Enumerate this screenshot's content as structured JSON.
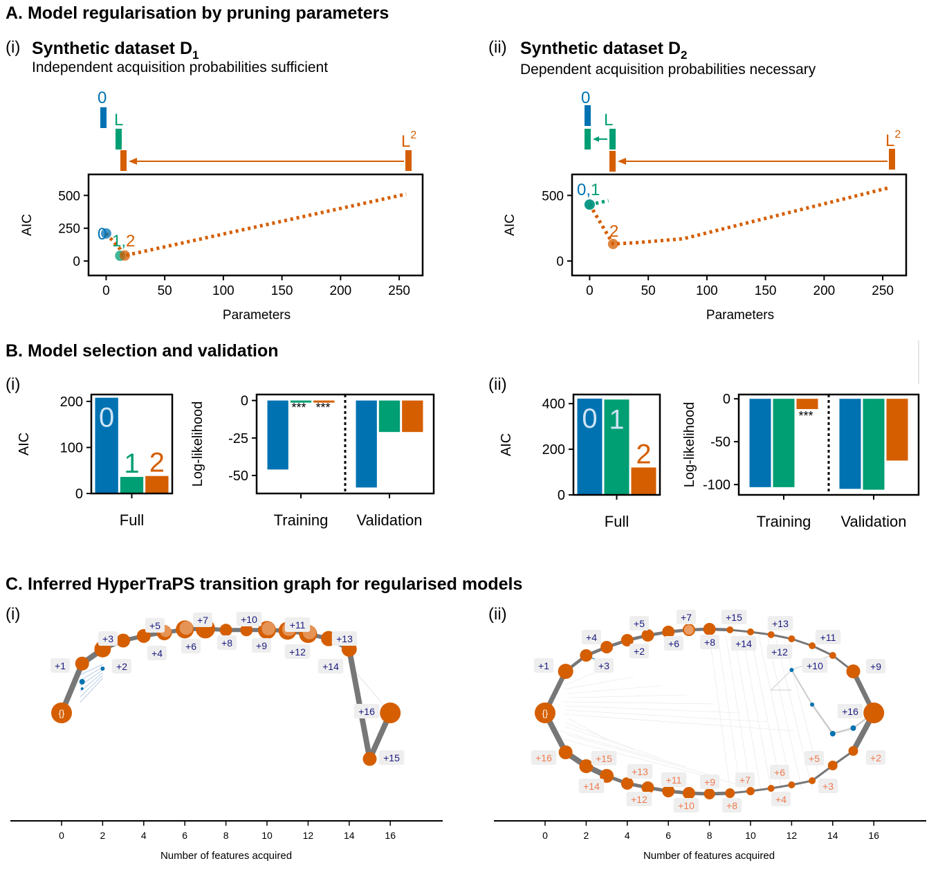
{
  "colors": {
    "c0": "#0072B2",
    "c1": "#009E73",
    "c2": "#D55E00",
    "navy": "#1a1a80",
    "salmon": "#f07a50",
    "edge": "#777777",
    "box": "#eeeeee"
  },
  "headings": {
    "A": "A. Model regularisation by pruning parameters",
    "B": "B. Model selection and validation",
    "C": "C. Inferred HyperTraPS transition graph for regularised models"
  },
  "panelA": {
    "i": {
      "tag": "(i)",
      "title": "Synthetic dataset D",
      "sub": "1",
      "subtitle": "Independent acquisition probabilities sufficient",
      "labels": {
        "m0": "0",
        "m1": "L",
        "m2": "L",
        "m2sup": "2",
        "pt0": "0",
        "pt12": "1,2"
      }
    },
    "ii": {
      "tag": "(ii)",
      "title": "Synthetic dataset D",
      "sub": "2",
      "subtitle": "Dependent acquisition probabilities necessary",
      "labels": {
        "m0": "0",
        "m1": "L",
        "m2": "L",
        "m2sup": "2",
        "pt01": "0,1",
        "pt2": "2"
      }
    }
  },
  "panelB": {
    "i": {
      "tag": "(i)"
    },
    "ii": {
      "tag": "(ii)"
    }
  },
  "panelC": {
    "i": {
      "tag": "(i)",
      "xlabel": "Number of features acquired"
    },
    "ii": {
      "tag": "(ii)",
      "xlabel": "Number of features acquired"
    }
  },
  "chart_data": [
    {
      "id": "A-i",
      "type": "line",
      "title": "Synthetic dataset D1",
      "xlabel": "Parameters",
      "ylabel": "AIC",
      "xlim": [
        -15,
        270
      ],
      "ylim": [
        -110,
        660
      ],
      "xticks": [
        0,
        50,
        100,
        150,
        200,
        250
      ],
      "yticks": [
        0,
        250,
        500
      ],
      "series": [
        {
          "name": "model 0",
          "color": "#0072B2",
          "x": [
            0
          ],
          "y": [
            210
          ]
        },
        {
          "name": "model 1",
          "color": "#009E73",
          "x": [
            12
          ],
          "y": [
            40
          ]
        },
        {
          "name": "model 2 (pruning L^2)",
          "color": "#D55E00",
          "dotted": true,
          "x": [
            0,
            6,
            12,
            14,
            16,
            256
          ],
          "y": [
            210,
            150,
            90,
            45,
            42,
            510
          ]
        }
      ]
    },
    {
      "id": "A-ii",
      "type": "line",
      "title": "Synthetic dataset D2",
      "xlabel": "Parameters",
      "ylabel": "AIC",
      "xlim": [
        -15,
        270
      ],
      "ylim": [
        -110,
        660
      ],
      "xticks": [
        0,
        50,
        100,
        150,
        200,
        250
      ],
      "yticks": [
        0,
        500
      ],
      "series": [
        {
          "name": "model 0",
          "color": "#0072B2",
          "x": [
            0
          ],
          "y": [
            430
          ]
        },
        {
          "name": "model 1",
          "color": "#009E73",
          "dotted": true,
          "x": [
            0,
            16
          ],
          "y": [
            430,
            460
          ]
        },
        {
          "name": "model 2 (pruning L^2)",
          "color": "#D55E00",
          "dotted": true,
          "x": [
            0,
            10,
            20,
            40,
            80,
            256
          ],
          "y": [
            430,
            280,
            130,
            140,
            170,
            560
          ]
        }
      ]
    },
    {
      "id": "B-i-AIC",
      "type": "bar",
      "ylabel": "AIC",
      "categories": [
        "Full"
      ],
      "ylim": [
        0,
        215
      ],
      "yticks": [
        0,
        100,
        200
      ],
      "series": [
        {
          "name": "0",
          "color": "#0072B2",
          "values": [
            208
          ]
        },
        {
          "name": "1",
          "color": "#009E73",
          "values": [
            36
          ]
        },
        {
          "name": "2",
          "color": "#D55E00",
          "values": [
            38
          ]
        }
      ]
    },
    {
      "id": "B-i-LL",
      "type": "bar",
      "ylabel": "Log-likelihood",
      "categories": [
        "Training",
        "Validation"
      ],
      "ylim": [
        -62,
        4
      ],
      "yticks": [
        0,
        -25,
        -50
      ],
      "annotations": [
        "***",
        "***"
      ],
      "series": [
        {
          "name": "0",
          "color": "#0072B2",
          "values": [
            -46,
            -58
          ]
        },
        {
          "name": "1",
          "color": "#009E73",
          "values": [
            -1,
            -21
          ]
        },
        {
          "name": "2",
          "color": "#D55E00",
          "values": [
            0,
            -21
          ]
        }
      ]
    },
    {
      "id": "B-ii-AIC",
      "type": "bar",
      "ylabel": "AIC",
      "categories": [
        "Full"
      ],
      "ylim": [
        0,
        440
      ],
      "yticks": [
        0,
        200,
        400
      ],
      "series": [
        {
          "name": "0",
          "color": "#0072B2",
          "values": [
            422
          ]
        },
        {
          "name": "1",
          "color": "#009E73",
          "values": [
            418
          ]
        },
        {
          "name": "2",
          "color": "#D55E00",
          "values": [
            120
          ]
        }
      ]
    },
    {
      "id": "B-ii-LL",
      "type": "bar",
      "ylabel": "Log-likelihood",
      "categories": [
        "Training",
        "Validation"
      ],
      "ylim": [
        -112,
        5
      ],
      "yticks": [
        0,
        -50,
        -100
      ],
      "annotations": [
        "***"
      ],
      "series": [
        {
          "name": "0",
          "color": "#0072B2",
          "values": [
            -103,
            -105
          ]
        },
        {
          "name": "1",
          "color": "#009E73",
          "values": [
            -103,
            -106
          ]
        },
        {
          "name": "2",
          "color": "#D55E00",
          "values": [
            -12,
            -72
          ]
        }
      ]
    },
    {
      "id": "C-i",
      "type": "scatter",
      "xlabel": "Number of features acquired",
      "xticks": [
        0,
        2,
        4,
        6,
        8,
        10,
        12,
        14,
        16
      ],
      "nodes": [
        {
          "x": 0,
          "y": 0,
          "label": "{}",
          "r": 15
        },
        {
          "x": 1,
          "y": 0.75,
          "label": "+1",
          "r": 10
        },
        {
          "x": 2,
          "y": 0.97,
          "label": "+2",
          "r": 12
        },
        {
          "x": 2,
          "y": 0.97,
          "label": "+3"
        },
        {
          "x": 3,
          "y": 1.1,
          "label": "",
          "r": 10
        },
        {
          "x": 4,
          "y": 1.17,
          "label": "+4",
          "r": 10
        },
        {
          "x": 5,
          "y": 1.22,
          "label": "+5",
          "r": 11
        },
        {
          "x": 6,
          "y": 1.27,
          "label": "+6",
          "r": 13
        },
        {
          "x": 7,
          "y": 1.28,
          "label": "+7",
          "r": 14
        },
        {
          "x": 8,
          "y": 1.26,
          "label": "+8",
          "r": 9
        },
        {
          "x": 9,
          "y": 1.26,
          "label": "+10",
          "r": 9
        },
        {
          "x": 10,
          "y": 1.26,
          "label": "+9",
          "r": 13
        },
        {
          "x": 11,
          "y": 1.25,
          "label": "+11",
          "r": 13
        },
        {
          "x": 12,
          "y": 1.2,
          "label": "+12",
          "r": 13
        },
        {
          "x": 13,
          "y": 1.13,
          "label": "+13",
          "r": 11
        },
        {
          "x": 14,
          "y": 0.97,
          "label": "+14",
          "r": 11
        },
        {
          "x": 15,
          "y": -0.7,
          "label": "+15",
          "r": 10
        },
        {
          "x": 16,
          "y": 0,
          "label": "+16",
          "r": 15
        }
      ]
    },
    {
      "id": "C-ii",
      "type": "scatter",
      "xlabel": "Number of features acquired",
      "xticks": [
        0,
        2,
        4,
        6,
        8,
        10,
        12,
        14,
        16
      ],
      "upper_labels": [
        "+1",
        "+2",
        "+3",
        "+4",
        "+5",
        "+6",
        "+7",
        "+8",
        "+9",
        "+10",
        "+11",
        "+12",
        "+13",
        "+14",
        "+15",
        "+16"
      ],
      "lower_labels": [
        "+16",
        "+14",
        "+15",
        "+13",
        "+12",
        "+11",
        "+10",
        "+9",
        "+8",
        "+7",
        "+6",
        "+4",
        "+5",
        "+3",
        "+2"
      ]
    }
  ]
}
